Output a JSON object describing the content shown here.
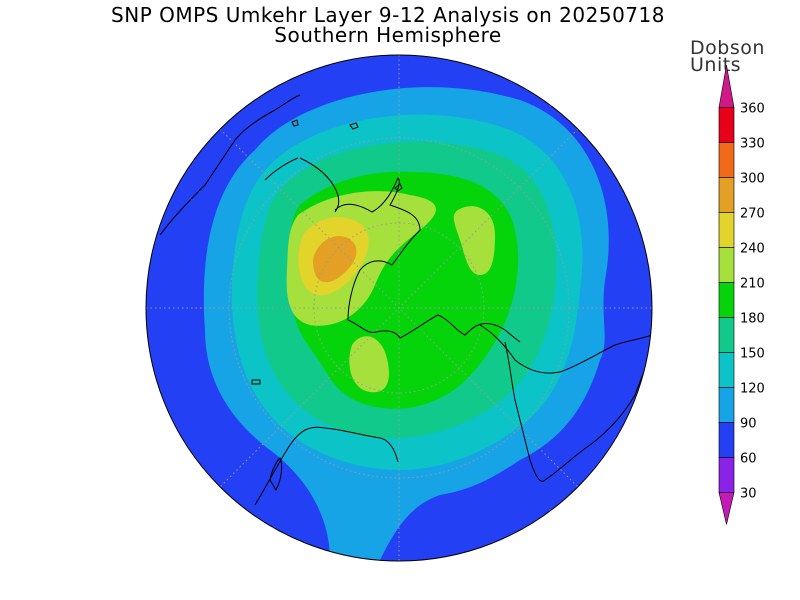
{
  "title": "SNP OMPS Umkehr Layer 9-12 Analysis on 20250718",
  "subtitle": "Southern Hemisphere",
  "colorbar": {
    "units_line1": "Dobson",
    "units_line2": "Units",
    "levels": [
      {
        "value": "360",
        "color": "#e8001a"
      },
      {
        "value": "330",
        "color": "#f06a18"
      },
      {
        "value": "300",
        "color": "#e3a024"
      },
      {
        "value": "270",
        "color": "#e2d42a"
      },
      {
        "value": "240",
        "color": "#a6e03c"
      },
      {
        "value": "210",
        "color": "#05d40a"
      },
      {
        "value": "180",
        "color": "#11c98a"
      },
      {
        "value": "150",
        "color": "#0cc4c8"
      },
      {
        "value": "120",
        "color": "#16a4e6"
      },
      {
        "value": "90",
        "color": "#2440f5"
      },
      {
        "value": "60",
        "color": "#8a22e8"
      },
      {
        "value": "30",
        "color": "#b018c8"
      }
    ],
    "top_arrow_color": "#d01888",
    "bottom_arrow_color": "#c41ab8"
  },
  "map": {
    "projection": "south polar stereographic",
    "background_color": "#2440f5"
  }
}
